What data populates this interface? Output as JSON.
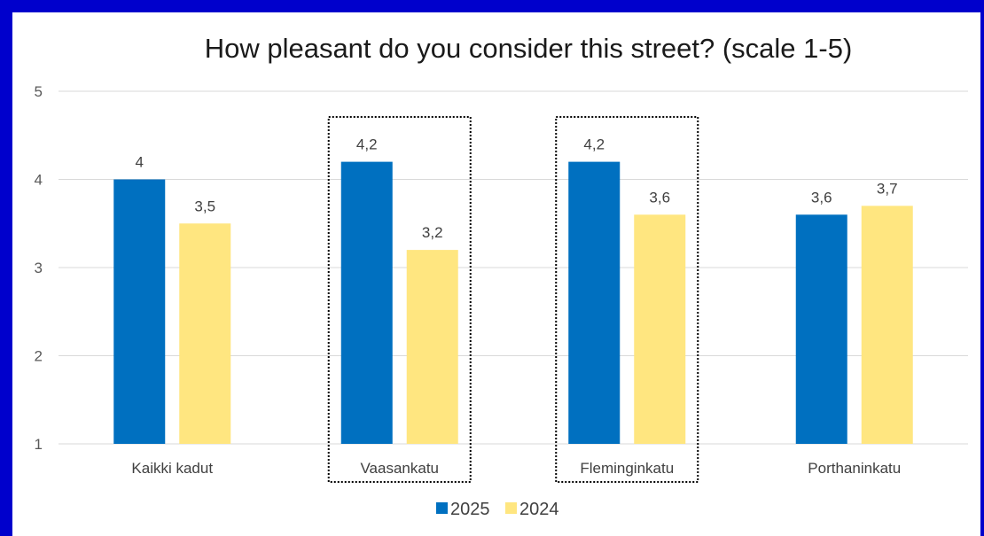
{
  "chart_data": {
    "type": "bar",
    "title": "How pleasant do you consider this street? (scale 1-5)",
    "categories": [
      "Kaikki kadut",
      "Vaasankatu",
      "Fleminginkatu",
      "Porthaninkatu"
    ],
    "series": [
      {
        "name": "2025",
        "values": [
          4,
          4.2,
          4.2,
          3.6
        ],
        "labels": [
          "4",
          "4,2",
          "4,2",
          "3,6"
        ],
        "color": "#0070c0"
      },
      {
        "name": "2024",
        "values": [
          3.5,
          3.2,
          3.6,
          3.7
        ],
        "labels": [
          "3,5",
          "3,2",
          "3,6",
          "3,7"
        ],
        "color": "#ffe680"
      }
    ],
    "ylim": [
      1,
      5
    ],
    "yticks": [
      "1",
      "2",
      "3",
      "4",
      "5"
    ],
    "grid": true,
    "legend": "bottom",
    "highlighted_categories": [
      "Vaasankatu",
      "Fleminginkatu"
    ]
  },
  "colors": {
    "frame": "#0000cc",
    "background": "#ffffff",
    "gridline": "#d9d9d9"
  }
}
